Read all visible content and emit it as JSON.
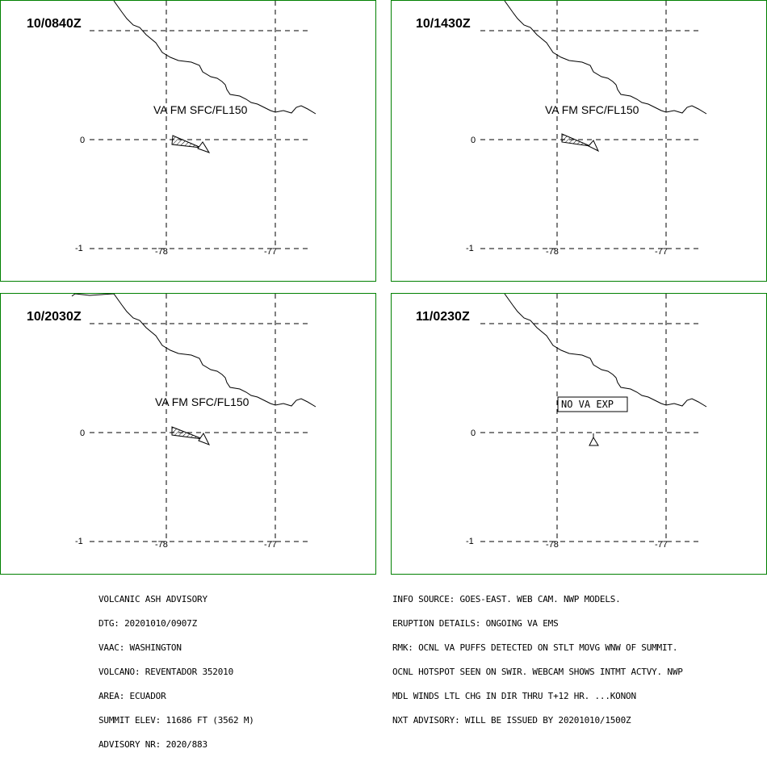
{
  "panels": [
    {
      "time": "10/0840Z",
      "label": "VA FM SFC/FL150",
      "no_va": false
    },
    {
      "time": "10/1430Z",
      "label": "VA FM SFC/FL150",
      "no_va": false
    },
    {
      "time": "10/2030Z",
      "label": "VA FM SFC/FL150",
      "no_va": false
    },
    {
      "time": "11/0230Z",
      "label": "NO VA EXP",
      "no_va": true
    }
  ],
  "axes": {
    "lat_labels": [
      "0",
      "-1"
    ],
    "lon_labels": [
      "-78",
      "-77"
    ]
  },
  "advisory_left": [
    "VOLCANIC ASH ADVISORY",
    "DTG: 20201010/0907Z",
    "VAAC: WASHINGTON",
    "VOLCANO: REVENTADOR 352010",
    "AREA: ECUADOR",
    "SUMMIT ELEV: 11686 FT (3562 M)",
    "ADVISORY NR: 2020/883"
  ],
  "advisory_right": [
    "INFO SOURCE: GOES-EAST. WEB CAM. NWP MODELS.",
    "ERUPTION DETAILS: ONGOING VA EMS",
    "RMK: OCNL VA PUFFS DETECTED ON STLT MOVG WNW OF SUMMIT.",
    "OCNL HOTSPOT SEEN ON SWIR. WEBCAM SHOWS INTMT ACTVY. NWP",
    "MDL WINDS LTL CHG IN DIR THRU T+12 HR. ...KONON",
    "NXT ADVISORY: WILL BE ISSUED BY 20201010/1500Z"
  ]
}
